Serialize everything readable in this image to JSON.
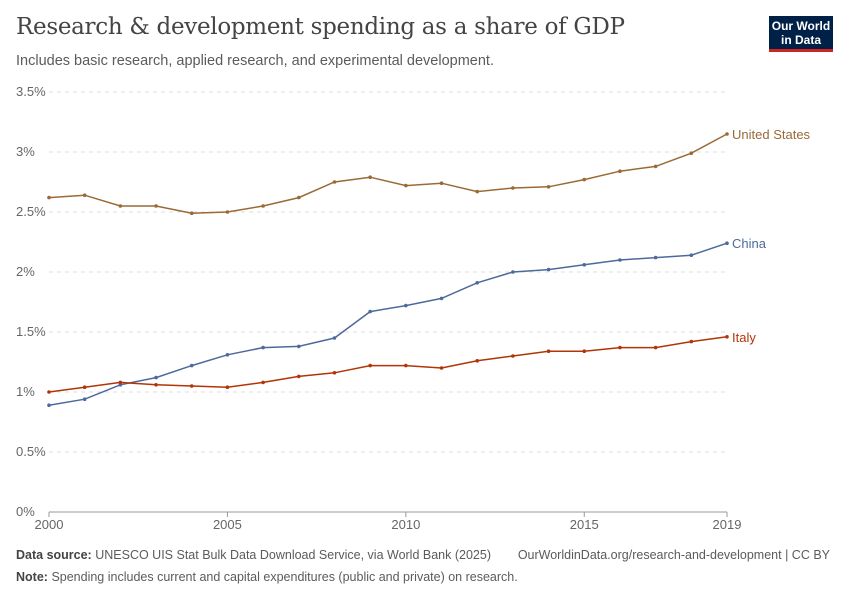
{
  "header": {
    "title": "Research & development spending as a share of GDP",
    "subtitle": "Includes basic research, applied research, and experimental development.",
    "logo": "Our World in Data"
  },
  "chart_data": {
    "type": "line",
    "title": "Research & development spending as a share of GDP",
    "x": [
      2000,
      2001,
      2002,
      2003,
      2004,
      2005,
      2006,
      2007,
      2008,
      2009,
      2010,
      2011,
      2012,
      2013,
      2014,
      2015,
      2016,
      2017,
      2018,
      2019
    ],
    "xticks": [
      "2000",
      "2005",
      "2010",
      "2015",
      "2019"
    ],
    "yticks": [
      "0%",
      "0.5%",
      "1%",
      "1.5%",
      "2%",
      "2.5%",
      "3%",
      "3.5%"
    ],
    "ylim": [
      0,
      3.5
    ],
    "grid": "horizontal dashed",
    "series": [
      {
        "name": "United States",
        "color": "#9a6a36",
        "values": [
          2.62,
          2.64,
          2.55,
          2.55,
          2.49,
          2.5,
          2.55,
          2.62,
          2.75,
          2.79,
          2.72,
          2.74,
          2.67,
          2.7,
          2.71,
          2.77,
          2.84,
          2.88,
          2.99,
          3.15
        ]
      },
      {
        "name": "China",
        "color": "#4c6a9c",
        "values": [
          0.89,
          0.94,
          1.06,
          1.12,
          1.22,
          1.31,
          1.37,
          1.38,
          1.45,
          1.67,
          1.72,
          1.78,
          1.91,
          2.0,
          2.02,
          2.06,
          2.1,
          2.12,
          2.14,
          2.24
        ]
      },
      {
        "name": "Italy",
        "color": "#b13507",
        "values": [
          1.0,
          1.04,
          1.08,
          1.06,
          1.05,
          1.04,
          1.08,
          1.13,
          1.16,
          1.22,
          1.22,
          1.2,
          1.26,
          1.3,
          1.34,
          1.34,
          1.37,
          1.37,
          1.42,
          1.46
        ]
      }
    ]
  },
  "footer": {
    "source_label": "Data source:",
    "source": "UNESCO UIS Stat Bulk Data Download Service, via World Bank (2025)",
    "url": "OurWorldinData.org/research-and-development | CC BY",
    "note_label": "Note:",
    "note": "Spending includes current and capital expenditures (public and private) on research."
  }
}
